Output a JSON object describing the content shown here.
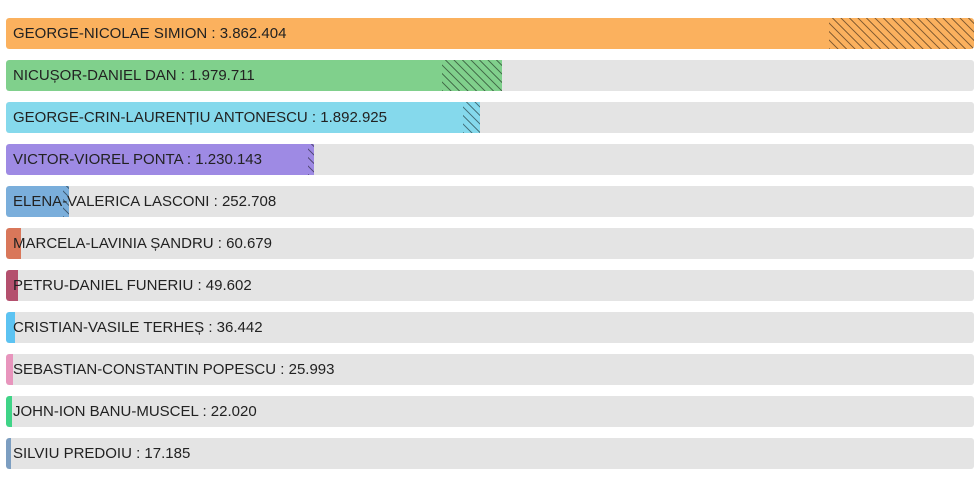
{
  "chart_data": {
    "type": "bar",
    "orientation": "horizontal",
    "max_value": 3862404,
    "bars": [
      {
        "name": "GEORGE-NICOLAE SIMION",
        "value": 3862404,
        "value_label": "3.862.404",
        "color": "#fbb15e",
        "hatch_fraction": 0.15
      },
      {
        "name": "NICUȘOR-DANIEL DAN",
        "value": 1979711,
        "value_label": "1.979.711",
        "color": "#80d08c",
        "hatch_fraction": 0.12
      },
      {
        "name": "GEORGE-CRIN-LAURENȚIU ANTONESCU",
        "value": 1892925,
        "value_label": "1.892.925",
        "color": "#85d9ec",
        "hatch_fraction": 0.035
      },
      {
        "name": "VICTOR-VIOREL PONTA",
        "value": 1230143,
        "value_label": "1.230.143",
        "color": "#9e8ae4",
        "hatch_fraction": 0.02
      },
      {
        "name": "ELENA-VALERICA LASCONI",
        "value": 252708,
        "value_label": "252.708",
        "color": "#7aaedb",
        "hatch_fraction": 0.1
      },
      {
        "name": "MARCELA-LAVINIA ȘANDRU",
        "value": 60679,
        "value_label": "60.679",
        "color": "#d9775a",
        "hatch_fraction": 0
      },
      {
        "name": "PETRU-DANIEL FUNERIU",
        "value": 49602,
        "value_label": "49.602",
        "color": "#b4506e",
        "hatch_fraction": 0
      },
      {
        "name": "CRISTIAN-VASILE TERHEȘ",
        "value": 36442,
        "value_label": "36.442",
        "color": "#5cc3f2",
        "hatch_fraction": 0
      },
      {
        "name": "SEBASTIAN-CONSTANTIN POPESCU",
        "value": 25993,
        "value_label": "25.993",
        "color": "#e895bd",
        "hatch_fraction": 0
      },
      {
        "name": "JOHN-ION BANU-MUSCEL",
        "value": 22020,
        "value_label": "22.020",
        "color": "#3fd487",
        "hatch_fraction": 0
      },
      {
        "name": "SILVIU PREDOIU",
        "value": 17185,
        "value_label": "17.185",
        "color": "#7c9ec1",
        "hatch_fraction": 0
      }
    ],
    "title": "",
    "xlabel": "",
    "ylabel": "",
    "grid": false,
    "legend": "none"
  }
}
